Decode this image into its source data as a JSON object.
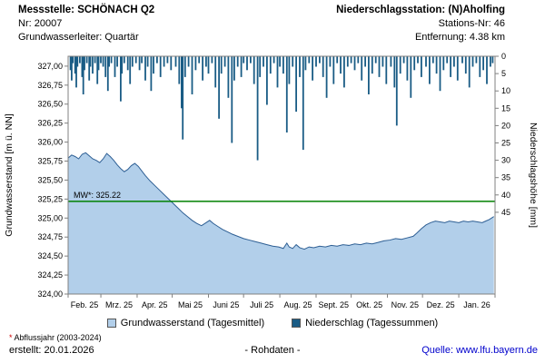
{
  "header": {
    "left": [
      "Messstelle: SCHÖNACH Q2",
      "Nr: 20007",
      "Grundwasserleiter: Quartär"
    ],
    "right": [
      "Niederschlagsstation: (N)Aholfing",
      "Stations-Nr: 46",
      "Entfernung: 4.38 km"
    ]
  },
  "colors": {
    "area_fill": "#b2cfea",
    "area_stroke": "#2e5f94",
    "bar": "#1a5c85",
    "mean": "#008000",
    "axis": "#808080"
  },
  "chart_data": {
    "type": "area",
    "title": "",
    "xlabel": "",
    "ylabel_left": "Grundwasserstand [m ü. NN]",
    "ylabel_right": "Niederschlagshöhe [mm]",
    "x_months": [
      "Feb. 25",
      "Mrz. 25",
      "Apr. 25",
      "Mai 25",
      "Juni 25",
      "Juli 25",
      "Aug. 25",
      "Sept. 25",
      "Okt. 25",
      "Nov. 25",
      "Dez. 25",
      "Jan. 26"
    ],
    "month_boundaries_days": [
      0,
      28,
      59,
      89,
      120,
      150,
      181,
      212,
      242,
      273,
      303,
      334,
      365
    ],
    "ylim_left": [
      324.0,
      327.13
    ],
    "yticks_left": [
      327.0,
      326.75,
      326.5,
      326.25,
      326.0,
      325.75,
      325.5,
      325.25,
      325.0,
      324.75,
      324.5,
      324.25,
      324.0
    ],
    "ylim_right": [
      0,
      45
    ],
    "yticks_right": [
      0,
      5,
      10,
      15,
      20,
      25,
      30,
      35,
      40,
      45
    ],
    "mean_line": {
      "value": 325.22,
      "label": "MW*: 325.22"
    },
    "groundwater": {
      "name": "Grundwasserstand (Tagesmittel)",
      "points": [
        [
          0,
          325.79
        ],
        [
          3,
          325.83
        ],
        [
          6,
          325.81
        ],
        [
          9,
          325.78
        ],
        [
          12,
          325.84
        ],
        [
          15,
          325.86
        ],
        [
          18,
          325.82
        ],
        [
          21,
          325.78
        ],
        [
          24,
          325.76
        ],
        [
          27,
          325.73
        ],
        [
          30,
          325.78
        ],
        [
          33,
          325.85
        ],
        [
          36,
          325.81
        ],
        [
          39,
          325.76
        ],
        [
          42,
          325.7
        ],
        [
          45,
          325.65
        ],
        [
          48,
          325.61
        ],
        [
          51,
          325.64
        ],
        [
          54,
          325.69
        ],
        [
          57,
          325.72
        ],
        [
          60,
          325.68
        ],
        [
          63,
          325.62
        ],
        [
          66,
          325.56
        ],
        [
          70,
          325.49
        ],
        [
          74,
          325.43
        ],
        [
          78,
          325.37
        ],
        [
          82,
          325.31
        ],
        [
          86,
          325.25
        ],
        [
          90,
          325.19
        ],
        [
          94,
          325.13
        ],
        [
          98,
          325.07
        ],
        [
          102,
          325.02
        ],
        [
          106,
          324.97
        ],
        [
          110,
          324.93
        ],
        [
          114,
          324.9
        ],
        [
          118,
          324.94
        ],
        [
          121,
          324.97
        ],
        [
          124,
          324.93
        ],
        [
          128,
          324.89
        ],
        [
          132,
          324.85
        ],
        [
          136,
          324.82
        ],
        [
          140,
          324.79
        ],
        [
          145,
          324.76
        ],
        [
          150,
          324.73
        ],
        [
          155,
          324.71
        ],
        [
          160,
          324.69
        ],
        [
          165,
          324.67
        ],
        [
          170,
          324.65
        ],
        [
          175,
          324.63
        ],
        [
          180,
          324.62
        ],
        [
          184,
          324.6
        ],
        [
          187,
          324.67
        ],
        [
          189,
          324.62
        ],
        [
          192,
          324.6
        ],
        [
          195,
          324.65
        ],
        [
          198,
          324.61
        ],
        [
          202,
          324.59
        ],
        [
          206,
          324.62
        ],
        [
          210,
          324.61
        ],
        [
          215,
          324.63
        ],
        [
          220,
          324.62
        ],
        [
          225,
          324.64
        ],
        [
          230,
          324.63
        ],
        [
          235,
          324.65
        ],
        [
          240,
          324.64
        ],
        [
          245,
          324.66
        ],
        [
          250,
          324.65
        ],
        [
          255,
          324.67
        ],
        [
          260,
          324.66
        ],
        [
          265,
          324.68
        ],
        [
          270,
          324.7
        ],
        [
          275,
          324.71
        ],
        [
          280,
          324.73
        ],
        [
          285,
          324.72
        ],
        [
          290,
          324.74
        ],
        [
          295,
          324.76
        ],
        [
          298,
          324.8
        ],
        [
          302,
          324.86
        ],
        [
          306,
          324.91
        ],
        [
          310,
          324.94
        ],
        [
          314,
          324.96
        ],
        [
          318,
          324.95
        ],
        [
          322,
          324.94
        ],
        [
          326,
          324.96
        ],
        [
          330,
          324.95
        ],
        [
          334,
          324.94
        ],
        [
          338,
          324.96
        ],
        [
          342,
          324.95
        ],
        [
          346,
          324.96
        ],
        [
          350,
          324.95
        ],
        [
          354,
          324.94
        ],
        [
          357,
          324.96
        ],
        [
          360,
          324.98
        ],
        [
          363,
          325.01
        ],
        [
          364,
          325.02
        ]
      ]
    },
    "precipitation": {
      "name": "Niederschlag (Tagessummen)",
      "events": [
        [
          2,
          4
        ],
        [
          3,
          7
        ],
        [
          4,
          2
        ],
        [
          6,
          5
        ],
        [
          7,
          9
        ],
        [
          8,
          3
        ],
        [
          10,
          2
        ],
        [
          12,
          6
        ],
        [
          13,
          11
        ],
        [
          14,
          4
        ],
        [
          16,
          2
        ],
        [
          18,
          7
        ],
        [
          19,
          3
        ],
        [
          21,
          5
        ],
        [
          23,
          2
        ],
        [
          25,
          8
        ],
        [
          26,
          4
        ],
        [
          28,
          2
        ],
        [
          30,
          3
        ],
        [
          32,
          6
        ],
        [
          34,
          10
        ],
        [
          35,
          3
        ],
        [
          37,
          2
        ],
        [
          40,
          6
        ],
        [
          42,
          3
        ],
        [
          45,
          13
        ],
        [
          46,
          5
        ],
        [
          48,
          2
        ],
        [
          51,
          4
        ],
        [
          53,
          8
        ],
        [
          55,
          3
        ],
        [
          58,
          2
        ],
        [
          61,
          4
        ],
        [
          63,
          2
        ],
        [
          66,
          7
        ],
        [
          68,
          3
        ],
        [
          71,
          10
        ],
        [
          73,
          5
        ],
        [
          76,
          2
        ],
        [
          79,
          6
        ],
        [
          82,
          3
        ],
        [
          85,
          2
        ],
        [
          88,
          4
        ],
        [
          92,
          3
        ],
        [
          95,
          8
        ],
        [
          97,
          15
        ],
        [
          98,
          24
        ],
        [
          100,
          6
        ],
        [
          103,
          3
        ],
        [
          106,
          11
        ],
        [
          109,
          4
        ],
        [
          112,
          2
        ],
        [
          115,
          7
        ],
        [
          118,
          3
        ],
        [
          120,
          5
        ],
        [
          123,
          2
        ],
        [
          126,
          9
        ],
        [
          129,
          18
        ],
        [
          131,
          5
        ],
        [
          134,
          3
        ],
        [
          137,
          12
        ],
        [
          140,
          25
        ],
        [
          142,
          7
        ],
        [
          145,
          3
        ],
        [
          148,
          6
        ],
        [
          150,
          2
        ],
        [
          153,
          4
        ],
        [
          156,
          2
        ],
        [
          159,
          8
        ],
        [
          162,
          30
        ],
        [
          164,
          6
        ],
        [
          167,
          3
        ],
        [
          170,
          14
        ],
        [
          173,
          5
        ],
        [
          176,
          2
        ],
        [
          179,
          9
        ],
        [
          181,
          3
        ],
        [
          184,
          5
        ],
        [
          187,
          22
        ],
        [
          189,
          8
        ],
        [
          192,
          3
        ],
        [
          195,
          16
        ],
        [
          198,
          6
        ],
        [
          201,
          27
        ],
        [
          203,
          4
        ],
        [
          206,
          2
        ],
        [
          209,
          7
        ],
        [
          212,
          3
        ],
        [
          215,
          2
        ],
        [
          218,
          6
        ],
        [
          221,
          12
        ],
        [
          224,
          3
        ],
        [
          227,
          8
        ],
        [
          230,
          2
        ],
        [
          233,
          5
        ],
        [
          236,
          9
        ],
        [
          239,
          3
        ],
        [
          242,
          2
        ],
        [
          245,
          4
        ],
        [
          248,
          2
        ],
        [
          251,
          7
        ],
        [
          254,
          3
        ],
        [
          257,
          11
        ],
        [
          260,
          5
        ],
        [
          263,
          2
        ],
        [
          266,
          6
        ],
        [
          269,
          3
        ],
        [
          272,
          8
        ],
        [
          276,
          3
        ],
        [
          279,
          9
        ],
        [
          281,
          20
        ],
        [
          284,
          5
        ],
        [
          287,
          2
        ],
        [
          290,
          7
        ],
        [
          293,
          12
        ],
        [
          296,
          4
        ],
        [
          299,
          2
        ],
        [
          302,
          6
        ],
        [
          306,
          3
        ],
        [
          309,
          8
        ],
        [
          312,
          2
        ],
        [
          315,
          5
        ],
        [
          318,
          10
        ],
        [
          321,
          4
        ],
        [
          324,
          2
        ],
        [
          327,
          6
        ],
        [
          330,
          3
        ],
        [
          333,
          7
        ],
        [
          337,
          2
        ],
        [
          340,
          5
        ],
        [
          343,
          9
        ],
        [
          346,
          3
        ],
        [
          349,
          2
        ],
        [
          352,
          6
        ],
        [
          355,
          4
        ],
        [
          358,
          8
        ],
        [
          361,
          3
        ],
        [
          363,
          2
        ]
      ]
    }
  },
  "footer": {
    "footnote_marker": "*",
    "footnote_text": "Abflussjahr (2003-2024)",
    "created": "erstellt:  20.01.2026",
    "center": "- Rohdaten -",
    "source_label": "Quelle:",
    "source_link": "www.lfu.bayern.de"
  }
}
